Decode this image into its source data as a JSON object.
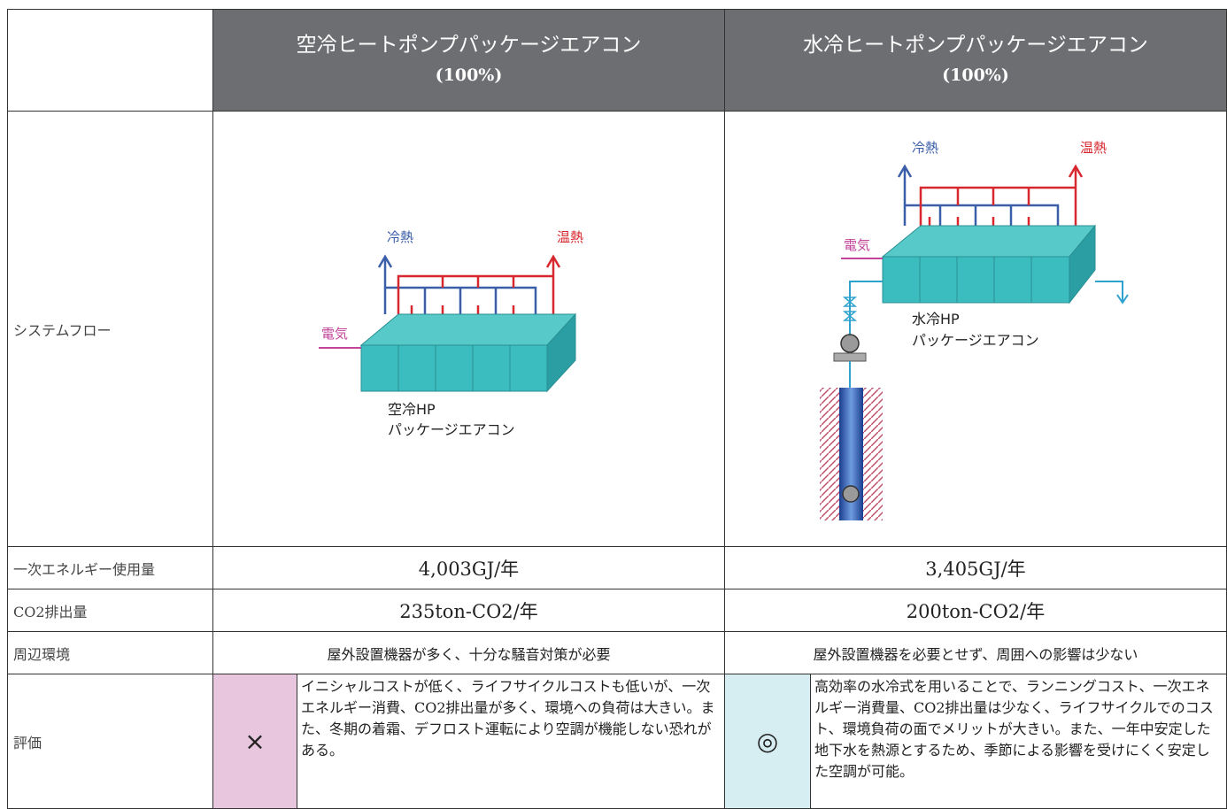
{
  "table": {
    "headers": [
      {
        "title": "空冷ヒートポンプパッケージエアコン",
        "share": "(100%)"
      },
      {
        "title": "水冷ヒートポンプパッケージエアコン",
        "share": "(100%)"
      }
    ],
    "rows": [
      {
        "label": "システムフロー"
      },
      {
        "label": "一次エネルギー使用量",
        "cells": [
          "4,003GJ/年",
          "3,405GJ/年"
        ]
      },
      {
        "label": "CO2排出量",
        "cells": [
          "235ton-CO2/年",
          "200ton-CO2/年"
        ]
      },
      {
        "label": "周辺環境",
        "cells": [
          "屋外設置機器が多く、十分な騒音対策が必要",
          "屋外設置機器を必要とせず、周囲への影響は少ない"
        ]
      },
      {
        "label": "評価",
        "cells": [
          {
            "mark": "×",
            "text": "イニシャルコストが低く、ライフサイクルコストも低いが、一次エネルギー消費、CO2排出量が多く、環境への負荷は大きい。また、冬期の着霜、デフロスト運転により空調が機能しない恐れがある。"
          },
          {
            "mark": "◎",
            "text": "高効率の水冷式を用いることで、ランニングコスト、一次エネルギー消費量、CO2排出量は少なく、ライフサイクルでのコスト、環境負荷の面でメリットが大きい。また、一年中安定した地下水を熱源とするため、季節による影響を受けにくく安定した空調が可能。"
          }
        ]
      }
    ],
    "diagrams": [
      {
        "cold": "冷熱",
        "hot": "温熱",
        "power": "電気",
        "caption": [
          "空冷HP",
          "パッケージエアコン"
        ]
      },
      {
        "cold": "冷熱",
        "hot": "温熱",
        "power": "電気",
        "caption": [
          "水冷HP",
          "パッケージエアコン"
        ]
      }
    ]
  }
}
